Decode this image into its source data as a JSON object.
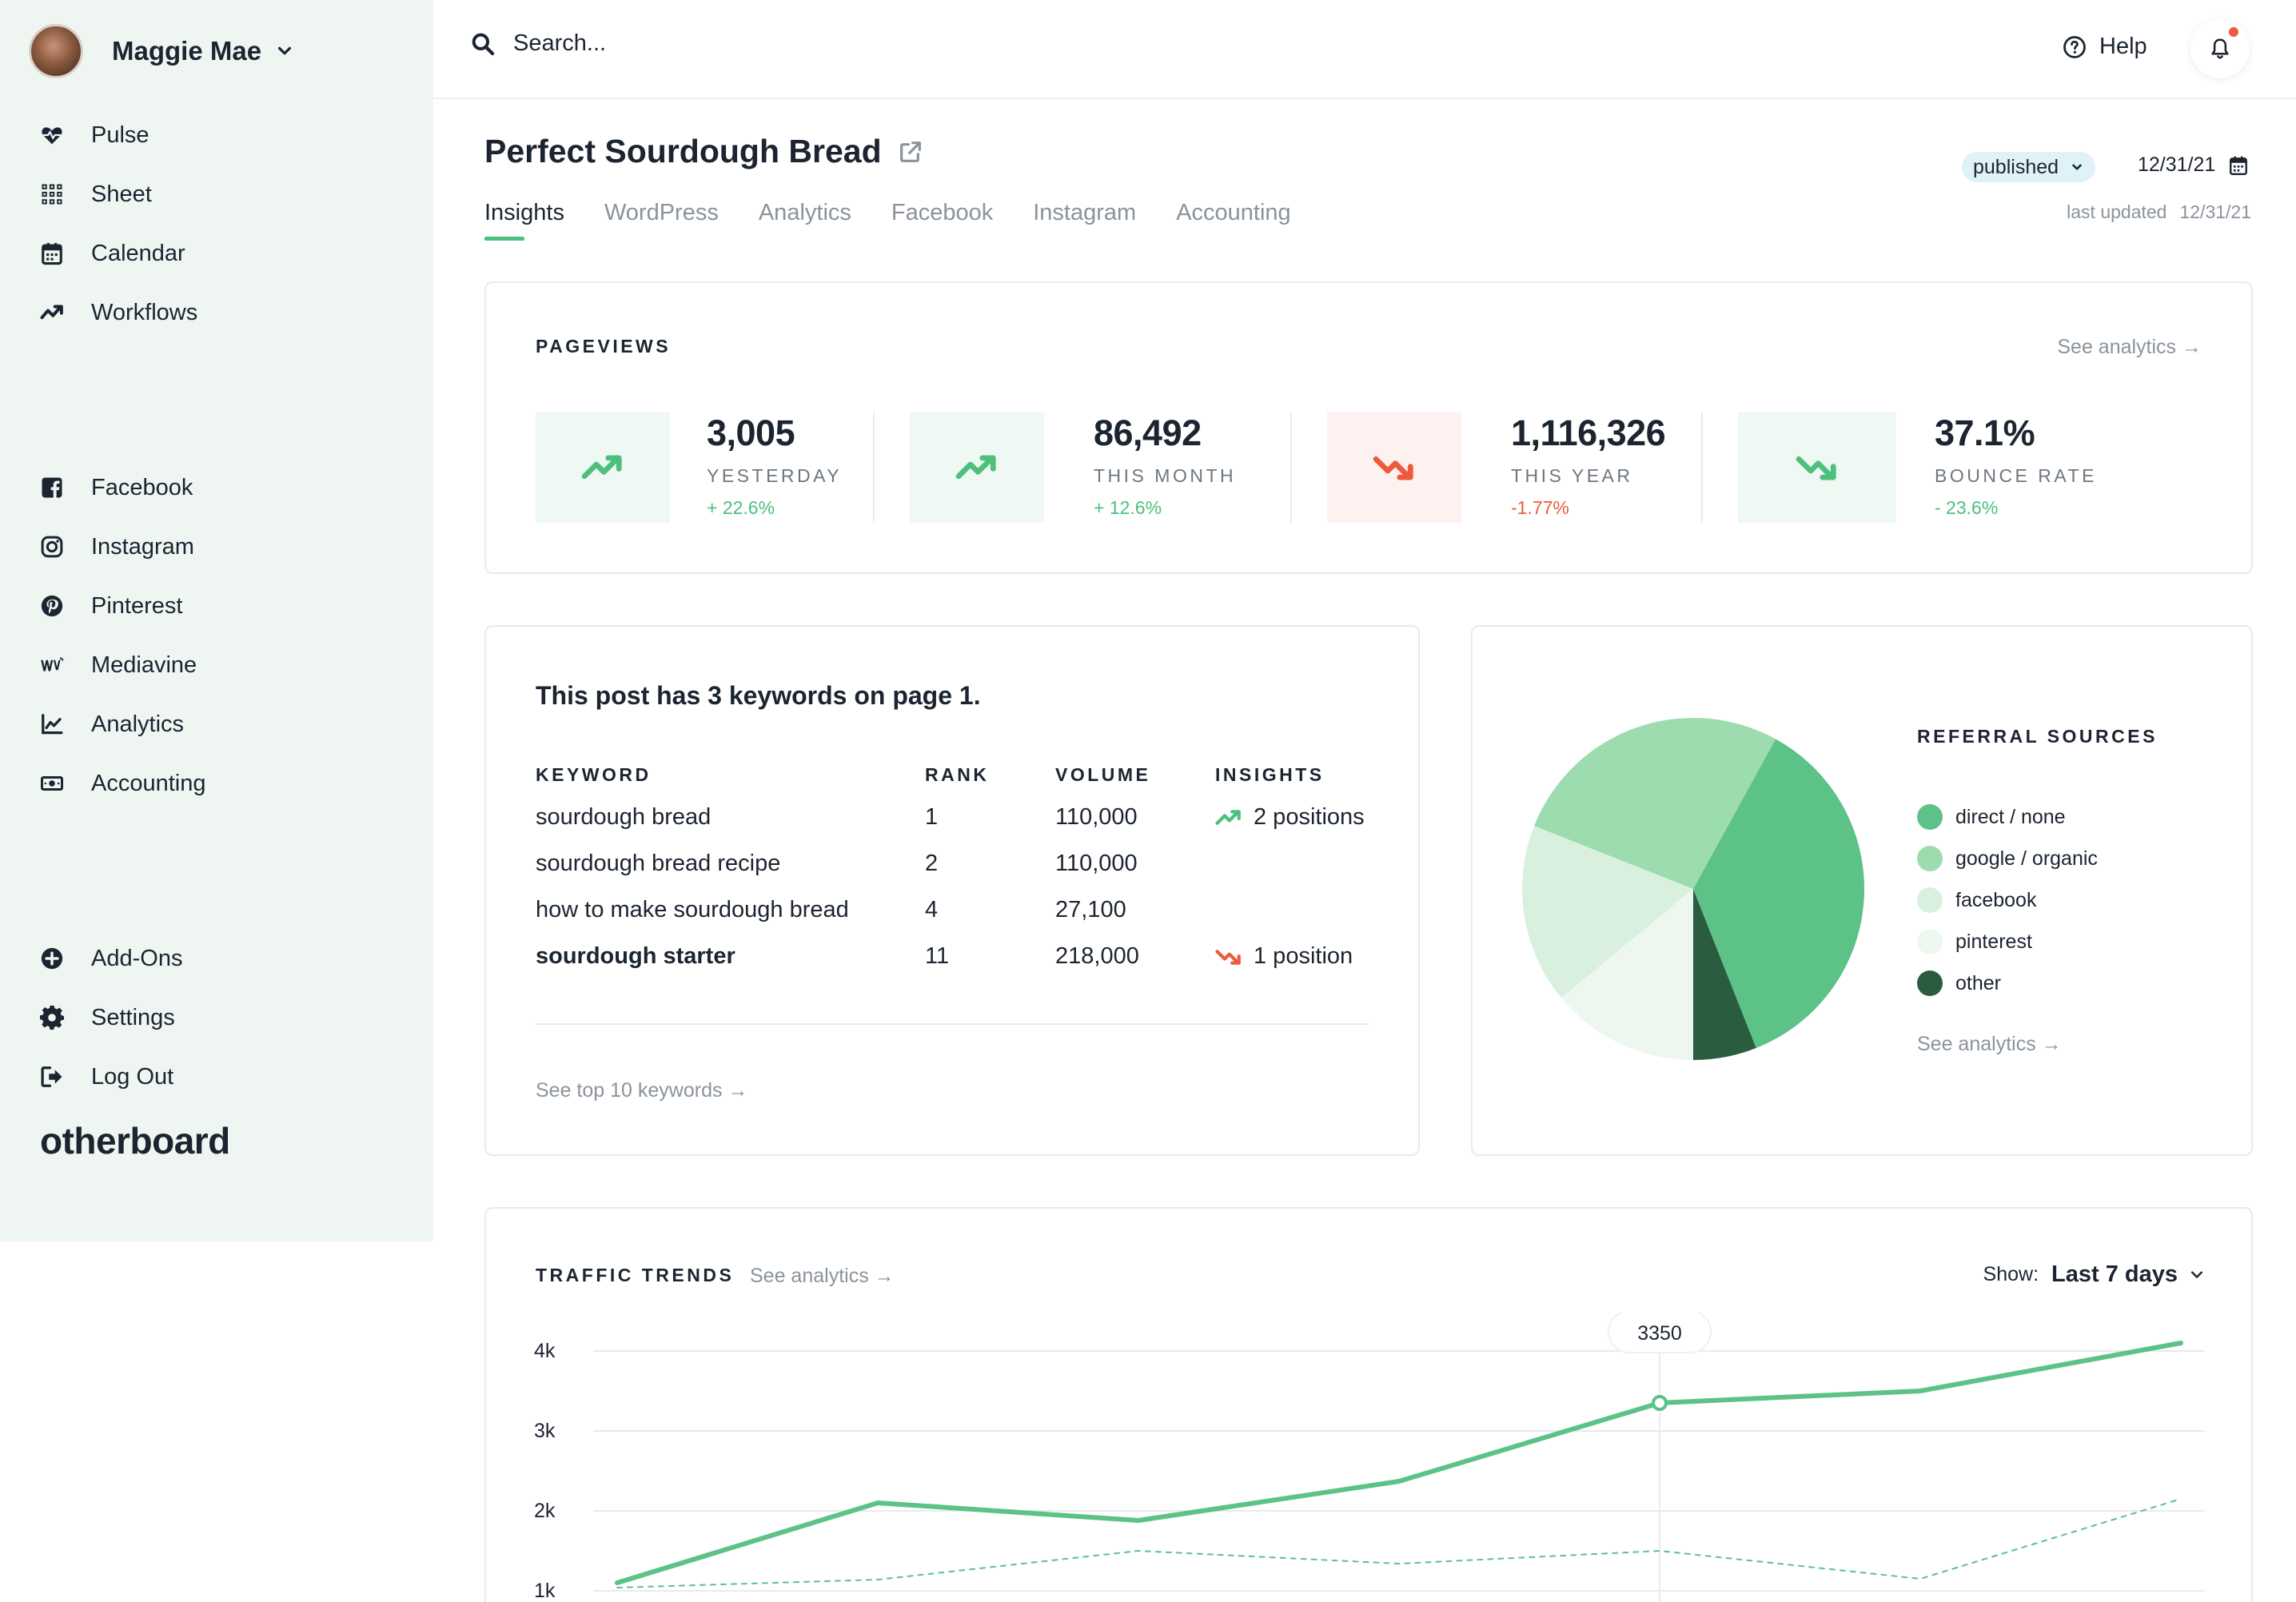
{
  "user": {
    "name": "Maggie Mae"
  },
  "sidebar": {
    "group1": [
      {
        "label": "Pulse",
        "icon": "heart-pulse-icon"
      },
      {
        "label": "Sheet",
        "icon": "grid-icon"
      },
      {
        "label": "Calendar",
        "icon": "calendar-icon"
      },
      {
        "label": "Workflows",
        "icon": "trend-icon"
      }
    ],
    "group2": [
      {
        "label": "Facebook",
        "icon": "facebook-icon"
      },
      {
        "label": "Instagram",
        "icon": "instagram-icon"
      },
      {
        "label": "Pinterest",
        "icon": "pinterest-icon"
      },
      {
        "label": "Mediavine",
        "icon": "mediavine-icon"
      },
      {
        "label": "Analytics",
        "icon": "line-chart-icon"
      },
      {
        "label": "Accounting",
        "icon": "money-icon"
      }
    ],
    "group3": [
      {
        "label": "Add-Ons",
        "icon": "plus-circle-icon"
      },
      {
        "label": "Settings",
        "icon": "gear-icon"
      },
      {
        "label": "Log Out",
        "icon": "logout-icon"
      }
    ],
    "brand": "otherboard"
  },
  "topbar": {
    "search_placeholder": "Search...",
    "help_label": "Help"
  },
  "page": {
    "title": "Perfect Sourdough Bread",
    "status": "published",
    "date": "12/31/21",
    "last_updated_label": "last updated",
    "last_updated_date": "12/31/21",
    "tabs": [
      "Insights",
      "WordPress",
      "Analytics",
      "Facebook",
      "Instagram",
      "Accounting"
    ]
  },
  "pageviews": {
    "title": "PAGEVIEWS",
    "see_link": "See analytics →",
    "stats": [
      {
        "value": "3,005",
        "label": "YESTERDAY",
        "change": "+ 22.6%",
        "trend": "up"
      },
      {
        "value": "86,492",
        "label": "THIS MONTH",
        "change": "+ 12.6%",
        "trend": "up"
      },
      {
        "value": "1,116,326",
        "label": "THIS YEAR",
        "change": "-1.77%",
        "trend": "down"
      },
      {
        "value": "37.1%",
        "label": "BOUNCE RATE",
        "change": "- 23.6%",
        "trend": "down-good"
      }
    ]
  },
  "keywords": {
    "headline": "This post has 3 keywords on page 1.",
    "headers": {
      "keyword": "KEYWORD",
      "rank": "RANK",
      "volume": "VOLUME",
      "insights": "INSIGHTS"
    },
    "rows": [
      {
        "keyword": "sourdough bread",
        "rank": "1",
        "volume": "110,000",
        "insight": "2 positions",
        "insight_trend": "up"
      },
      {
        "keyword": "sourdough bread recipe",
        "rank": "2",
        "volume": "110,000",
        "insight": "",
        "insight_trend": ""
      },
      {
        "keyword": "how to make sourdough bread",
        "rank": "4",
        "volume": "27,100",
        "insight": "",
        "insight_trend": ""
      },
      {
        "keyword": "sourdough starter",
        "rank": "11",
        "volume": "218,000",
        "insight": "1 position",
        "insight_trend": "down"
      }
    ],
    "see_link": "See top 10 keywords →"
  },
  "referral": {
    "title": "REFERRAL SOURCES",
    "see_link": "See analytics →",
    "sources": [
      {
        "label": "direct / none",
        "color": "#5cc287",
        "share": 0.36
      },
      {
        "label": "google / organic",
        "color": "#9ddcae",
        "share": 0.27
      },
      {
        "label": "facebook",
        "color": "#daf0df",
        "share": 0.17
      },
      {
        "label": "pinterest",
        "color": "#edf7f0",
        "share": 0.14
      },
      {
        "label": "other",
        "color": "#2a5c40",
        "share": 0.06
      }
    ]
  },
  "traffic": {
    "title": "TRAFFIC TRENDS",
    "see_link": "See analytics →",
    "show_label": "Show:",
    "show_value": "Last 7 days",
    "tooltip_value": "3350"
  },
  "chart_data": {
    "type": "line",
    "x": [
      1,
      2,
      3,
      4,
      5,
      6,
      7
    ],
    "y_ticks": [
      "4k",
      "3k",
      "2k",
      "1k"
    ],
    "ylim": [
      1000,
      4000
    ],
    "series": [
      {
        "values": [
          1100,
          2100,
          1880,
          2370,
          3350,
          3500,
          4100
        ],
        "color": "#5cc287",
        "style": "solid"
      },
      {
        "values": [
          1040,
          1140,
          1500,
          1340,
          1500,
          1150,
          2150
        ],
        "color": "#5cc287",
        "style": "dashed"
      }
    ],
    "highlight_index": 4,
    "grid": true
  },
  "colors": {
    "accent": "#4cc07c",
    "negative": "#ee5a3d",
    "sidebar_bg": "#eff6f2"
  }
}
